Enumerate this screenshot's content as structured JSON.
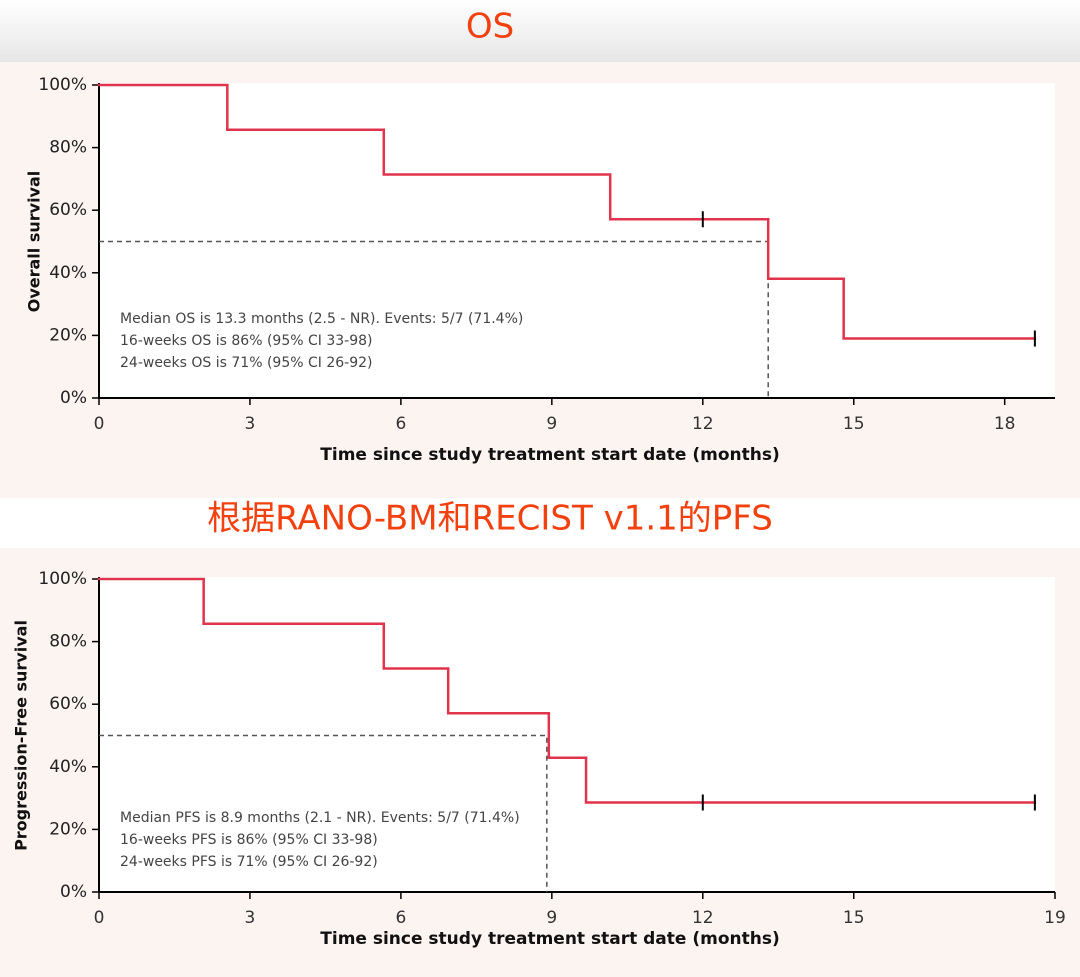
{
  "chart_data": [
    {
      "type": "step",
      "title": "OS",
      "xlabel": "Time since study treatment start date (months)",
      "ylabel": "Overall survival",
      "xlim": [
        0,
        19
      ],
      "xticks": [
        0,
        3,
        6,
        9,
        12,
        15,
        18
      ],
      "ylim": [
        0,
        100
      ],
      "yticks": [
        {
          "value": 0,
          "label": "0%"
        },
        {
          "value": 20,
          "label": "20%"
        },
        {
          "value": 40,
          "label": "40%"
        },
        {
          "value": 60,
          "label": "60%"
        },
        {
          "value": 80,
          "label": "80%"
        },
        {
          "value": 100,
          "label": "100%"
        }
      ],
      "series": [
        {
          "color": "#e0334c",
          "x": [
            0,
            2.55,
            5.66,
            10.16,
            13.3,
            14.8,
            18.6
          ],
          "values": [
            100,
            85.7,
            71.4,
            57.1,
            38.1,
            19.0,
            19.0
          ],
          "censor_x": [
            12,
            18.6
          ],
          "censor_values": [
            57.1,
            19.0
          ]
        }
      ],
      "median": {
        "x": 13.3,
        "y": 50
      },
      "annotations": [
        "Median OS is 13.3 months (2.5 - NR). Events: 5/7 (71.4%)",
        "16-weeks OS is 86% (95% CI 33-98)",
        "24-weeks OS is 71% (95% CI 26-92)"
      ]
    },
    {
      "type": "step",
      "title": "根据RANO-BM和RECIST v1.1的PFS",
      "xlabel": "Time since study treatment start date (months)",
      "ylabel": "Progression-Free survival",
      "xlim": [
        0,
        19
      ],
      "xticks": [
        0,
        3,
        6,
        9,
        12,
        15,
        19
      ],
      "ylim": [
        0,
        100
      ],
      "yticks": [
        {
          "value": 0,
          "label": "0%"
        },
        {
          "value": 20,
          "label": "20%"
        },
        {
          "value": 40,
          "label": "40%"
        },
        {
          "value": 60,
          "label": "60%"
        },
        {
          "value": 80,
          "label": "80%"
        },
        {
          "value": 100,
          "label": "100%"
        }
      ],
      "series": [
        {
          "color": "#e0334c",
          "x": [
            0,
            2.08,
            5.66,
            6.94,
            8.94,
            9.68,
            18.6
          ],
          "values": [
            100,
            85.7,
            71.4,
            57.1,
            42.9,
            28.6,
            28.6
          ],
          "censor_x": [
            12,
            18.6
          ],
          "censor_values": [
            28.6,
            28.6
          ]
        }
      ],
      "median": {
        "x": 8.9,
        "y": 50
      },
      "annotations": [
        "Median PFS is 8.9 months (2.1 - NR). Events: 5/7 (71.4%)",
        "16-weeks PFS is 86% (95% CI 33-98)",
        "24-weeks PFS is 71% (95% CI 26-92)"
      ]
    }
  ]
}
